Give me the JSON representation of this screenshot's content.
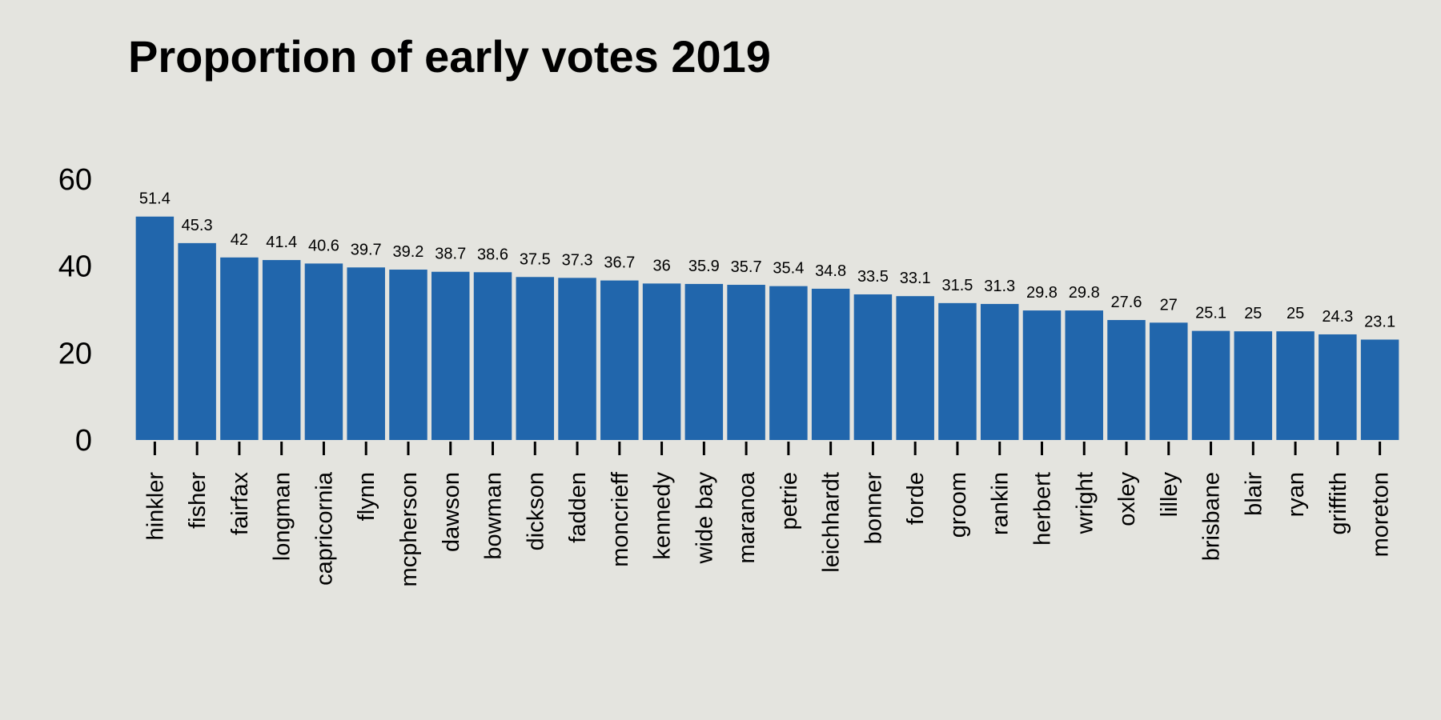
{
  "chart_data": {
    "type": "bar",
    "title": "Proportion of early votes 2019",
    "xlabel": "",
    "ylabel": "",
    "ylim": [
      0,
      60
    ],
    "yticks": [
      0,
      20,
      40,
      60
    ],
    "grid": false,
    "bar_color": "#2166ac",
    "background": "#e4e4df",
    "categories": [
      "hinkler",
      "fisher",
      "fairfax",
      "longman",
      "capricornia",
      "flynn",
      "mcpherson",
      "dawson",
      "bowman",
      "dickson",
      "fadden",
      "moncrieff",
      "kennedy",
      "wide bay",
      "maranoa",
      "petrie",
      "leichhardt",
      "bonner",
      "forde",
      "groom",
      "rankin",
      "herbert",
      "wright",
      "oxley",
      "lilley",
      "brisbane",
      "blair",
      "ryan",
      "griffith",
      "moreton"
    ],
    "values": [
      51.4,
      45.3,
      42,
      41.4,
      40.6,
      39.7,
      39.2,
      38.7,
      38.6,
      37.5,
      37.3,
      36.7,
      36,
      35.9,
      35.7,
      35.4,
      34.8,
      33.5,
      33.1,
      31.5,
      31.3,
      29.8,
      29.8,
      27.6,
      27,
      25.1,
      25,
      25,
      24.3,
      23.1
    ],
    "data_labels": [
      "51.4",
      "45.3",
      "42",
      "41.4",
      "40.6",
      "39.7",
      "39.2",
      "38.7",
      "38.6",
      "37.5",
      "37.3",
      "36.7",
      "36",
      "35.9",
      "35.7",
      "35.4",
      "34.8",
      "33.5",
      "33.1",
      "31.5",
      "31.3",
      "29.8",
      "29.8",
      "27.6",
      "27",
      "25.1",
      "25",
      "25",
      "24.3",
      "23.1"
    ]
  }
}
